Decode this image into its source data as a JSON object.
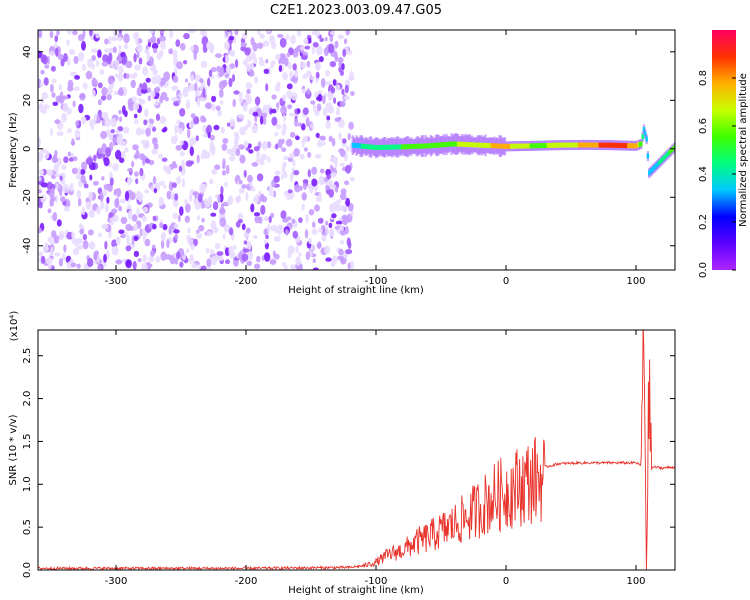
{
  "title": "C2E1.2023.003.09.47.G05",
  "colors": {
    "axis": "#000000",
    "snr_line": "#e8322a",
    "colorbar_stops": [
      "#b026ff",
      "#5a00ff",
      "#0000ff",
      "#00c8ff",
      "#00ff80",
      "#40ff00",
      "#c8ff00",
      "#ffb000",
      "#ff3000",
      "#ff0060"
    ]
  },
  "chart_data": [
    {
      "type": "heatmap",
      "title": "",
      "xlabel": "Height of straight line (km)",
      "ylabel": "Frequency (Hz)",
      "xlim": [
        -360,
        130
      ],
      "ylim": [
        -50,
        49
      ],
      "xticks": [
        -300,
        -200,
        -100,
        0,
        100
      ],
      "xtick_labels": [
        "-300",
        "-200",
        "-100",
        "0",
        "100"
      ],
      "yticks": [
        -40,
        -20,
        0,
        20,
        40
      ],
      "ytick_labels": [
        "-40",
        "-20",
        "0",
        "20",
        "40"
      ],
      "noise_region_x": [
        -360,
        -118
      ],
      "signal_line": {
        "x": [
          -118,
          -100,
          -80,
          -60,
          -40,
          -20,
          0,
          20,
          40,
          60,
          80,
          100,
          104,
          106,
          108,
          110,
          130
        ],
        "freq": [
          1.5,
          0.5,
          0.8,
          1.2,
          2.0,
          1.5,
          1.0,
          1.2,
          1.5,
          1.6,
          1.5,
          1.2,
          2,
          8,
          4,
          -10,
          0.8
        ],
        "amplitude": [
          0.35,
          0.45,
          0.5,
          0.55,
          0.6,
          0.7,
          0.75,
          0.6,
          0.62,
          0.75,
          0.9,
          0.8,
          0.5,
          0.35,
          0.35,
          0.3,
          0.55
        ]
      },
      "colorbar": {
        "label": "Normalized spectral amplitude",
        "range": [
          0.0,
          1.0
        ],
        "ticks": [
          0.0,
          0.2,
          0.4,
          0.6,
          0.8
        ],
        "tick_labels": [
          "0.0",
          "0.2",
          "0.4",
          "0.6",
          "0.8"
        ]
      }
    },
    {
      "type": "line",
      "title": "",
      "xlabel": "Height of straight line (km)",
      "ylabel": "SNR (10 * v/v)",
      "exponent_label": "(x10⁴)",
      "xlim": [
        -360,
        130
      ],
      "ylim": [
        0,
        2.8
      ],
      "xticks": [
        -300,
        -200,
        -100,
        0,
        100
      ],
      "xtick_labels": [
        "-300",
        "-200",
        "-100",
        "0",
        "100"
      ],
      "yticks": [
        0.0,
        0.5,
        1.0,
        1.5,
        2.0,
        2.5
      ],
      "ytick_labels": [
        "0.0",
        "0.5",
        "1.0",
        "1.5",
        "2.0",
        "2.5"
      ],
      "series": [
        {
          "x": [
            -360,
            -300,
            -200,
            -120,
            -110,
            -100,
            -90,
            -80,
            -70,
            -60,
            -50,
            -40,
            -30,
            -20,
            -10,
            0,
            10,
            20,
            30,
            40,
            60,
            80,
            100,
            104,
            106,
            108,
            110,
            112,
            115,
            120,
            130
          ],
          "y": [
            0.02,
            0.02,
            0.02,
            0.03,
            0.05,
            0.1,
            0.2,
            0.25,
            0.35,
            0.42,
            0.5,
            0.58,
            0.68,
            0.8,
            0.92,
            1.0,
            1.08,
            1.15,
            1.2,
            1.24,
            1.25,
            1.25,
            1.25,
            1.22,
            2.8,
            0.2,
            2.1,
            1.2,
            1.2,
            1.19,
            1.2
          ]
        }
      ]
    }
  ]
}
